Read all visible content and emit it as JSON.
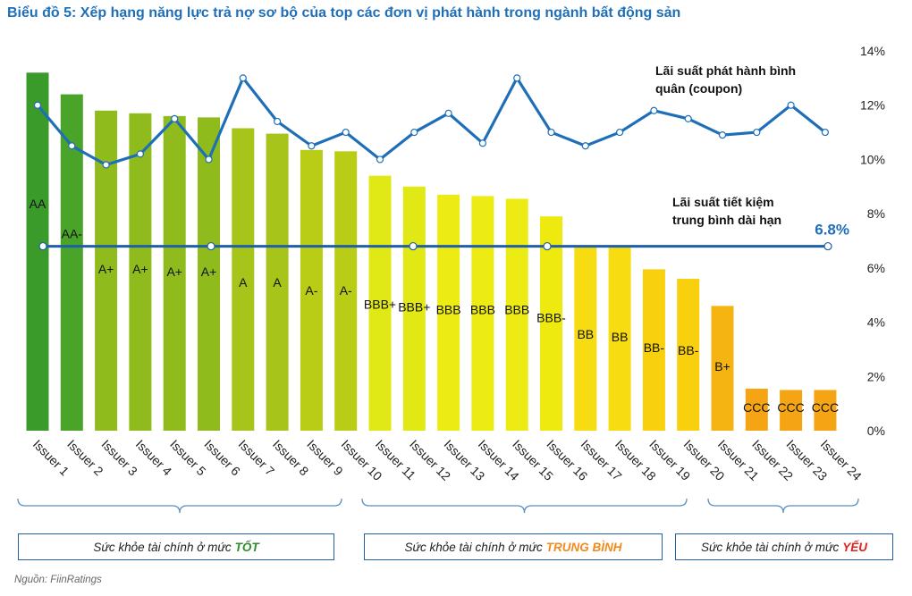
{
  "title": "Biểu đồ 5: Xếp hạng năng lực trả nợ sơ bộ của top các đơn vị phát hành trong ngành bất động sản",
  "source": "Nguồn: FiinRatings",
  "groups": [
    {
      "prefix": "Sức khỏe tài chính ở mức",
      "level": "TỐT",
      "color": "#2e8b2e"
    },
    {
      "prefix": "Sức khỏe tài chính ở mức",
      "level": "TRUNG BÌNH",
      "color": "#f08a1c"
    },
    {
      "prefix": "Sức khỏe tài chính ở mức",
      "level": "YẾU",
      "color": "#e02020"
    }
  ],
  "chart_data": {
    "type": "bar",
    "title": "Biểu đồ 5: Xếp hạng năng lực trả nợ sơ bộ của top các đơn vị phát hành trong ngành bất động sản",
    "categories": [
      "Issuer 1",
      "Issuer 2",
      "Issuer 3",
      "Issuer 4",
      "Issuer 5",
      "Issuer 6",
      "Issuer 7",
      "Issuer 8",
      "Issuer 9",
      "Issuer 10",
      "Issuer 11",
      "Issuer 12",
      "Issuer 13",
      "Issuer 14",
      "Issuer 15",
      "Issuer 16",
      "Issuer 17",
      "Issuer 18",
      "Issuer 19",
      "Issuer 20",
      "Issuer 21",
      "Issuer 22",
      "Issuer 23",
      "Issuer 24"
    ],
    "ratings": [
      "AA",
      "AA-",
      "A+",
      "A+",
      "A+",
      "A+",
      "A",
      "A",
      "A-",
      "A-",
      "BBB+",
      "BBB+",
      "BBB",
      "BBB",
      "BBB",
      "BBB-",
      "BB",
      "BB",
      "BB-",
      "BB-",
      "B+",
      "CCC",
      "CCC",
      "CCC"
    ],
    "bar_colors": [
      "#3a9a2a",
      "#4aa42a",
      "#8fbc1c",
      "#8fbc1c",
      "#8fbc1c",
      "#8fbc1c",
      "#a7c41a",
      "#a7c41a",
      "#b9cc16",
      "#b9cc16",
      "#e0e816",
      "#e0e816",
      "#ecec14",
      "#ecec14",
      "#ecec14",
      "#eeea10",
      "#f6dc10",
      "#f6dc10",
      "#f8d00e",
      "#f8d00e",
      "#f6b412",
      "#f5a414",
      "#f5a414",
      "#f5a414"
    ],
    "series": [
      {
        "name": "Lãi suất phát hành bình quân (coupon)",
        "type": "line",
        "values": [
          12.0,
          10.5,
          9.8,
          10.2,
          11.5,
          10.0,
          13.0,
          11.4,
          10.5,
          11.0,
          10.0,
          11.0,
          11.7,
          10.6,
          13.0,
          11.0,
          10.5,
          11.0,
          11.8,
          11.5,
          10.9,
          11.0,
          12.0,
          11.0
        ]
      },
      {
        "name": "Lãi suất tiết kiệm trung bình dài hạn",
        "type": "line",
        "value": 6.8,
        "value_label": "6.8%"
      }
    ],
    "annotations": [
      "Lãi suất phát hành bình quân (coupon)",
      "Lãi suất tiết kiệm trung bình dài hạn"
    ],
    "y_ticks": [
      "0%",
      "2%",
      "4%",
      "6%",
      "8%",
      "10%",
      "12%",
      "14%"
    ],
    "ylim": [
      0,
      14
    ],
    "ylabel": "",
    "xlabel": ""
  }
}
